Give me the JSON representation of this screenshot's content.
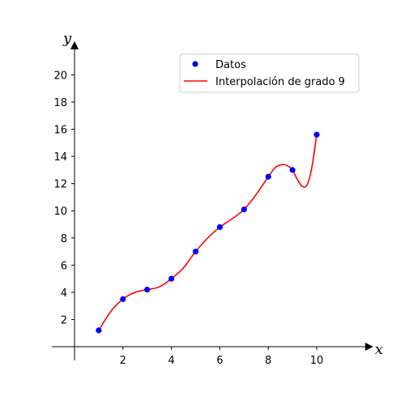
{
  "chart_data": {
    "type": "line",
    "xlabel": "x",
    "ylabel": "y",
    "xlim": [
      -1,
      12
    ],
    "ylim": [
      -1,
      22
    ],
    "x_ticks": [
      2,
      4,
      6,
      8,
      10
    ],
    "y_ticks": [
      2,
      4,
      6,
      8,
      10,
      12,
      14,
      16,
      18,
      20
    ],
    "grid": false,
    "legend_position": "top-right",
    "series": [
      {
        "name": "Datos",
        "kind": "scatter",
        "color": "#0000ff",
        "x": [
          1,
          2,
          3,
          4,
          5,
          6,
          7,
          8,
          9,
          10
        ],
        "y": [
          1.2,
          3.5,
          4.2,
          5.0,
          7.0,
          8.8,
          10.1,
          12.5,
          13.0,
          15.6
        ]
      },
      {
        "name": "Interpolación de grado 9",
        "kind": "line",
        "color": "#ff0000",
        "x": [
          1.0,
          1.5,
          2.0,
          2.5,
          3.0,
          3.5,
          4.0,
          4.5,
          5.0,
          5.5,
          6.0,
          6.5,
          7.0,
          7.5,
          8.0,
          8.3,
          8.6,
          8.8,
          9.0,
          9.2,
          9.4,
          9.6,
          9.8,
          10.0
        ],
        "y": [
          1.2,
          2.6,
          3.5,
          4.0,
          4.2,
          4.4,
          5.0,
          5.8,
          7.0,
          8.0,
          8.8,
          9.4,
          10.1,
          11.2,
          12.5,
          13.2,
          13.4,
          13.3,
          13.0,
          12.3,
          11.8,
          11.9,
          13.2,
          15.6
        ]
      }
    ]
  }
}
